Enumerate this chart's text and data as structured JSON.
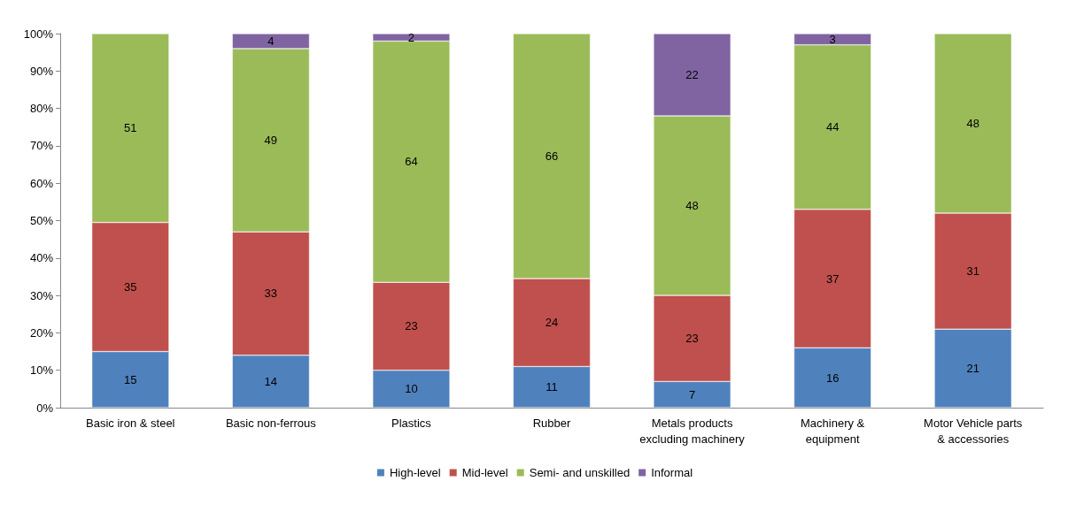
{
  "chart_data": {
    "type": "bar",
    "stacked": true,
    "categories": [
      "Basic iron & steel",
      "Basic non-ferrous",
      "Plastics",
      "Rubber",
      "Metals products\nexcluding machinery",
      "Machinery &\nequipment",
      "Motor Vehicle parts\n& accessories"
    ],
    "series": [
      {
        "name": "High-level",
        "color": "#4f81bd",
        "values": [
          15,
          14,
          10,
          11,
          7,
          16,
          21
        ],
        "value_labels": [
          "15",
          "14",
          "10",
          "11",
          "7",
          "16",
          "21"
        ]
      },
      {
        "name": "Mid-level",
        "color": "#c0504d",
        "values": [
          34.5,
          33,
          23.5,
          23.5,
          23,
          37,
          31
        ],
        "value_labels": [
          "35",
          "33",
          "23",
          "24",
          "23",
          "37",
          "31"
        ]
      },
      {
        "name": "Semi- and unskilled",
        "color": "#9bbb59",
        "values": [
          50.5,
          49,
          64.5,
          65.5,
          48,
          44,
          48
        ],
        "value_labels": [
          "51",
          "49",
          "64",
          "66",
          "48",
          "44",
          "48"
        ]
      },
      {
        "name": "Informal",
        "color": "#8064a2",
        "values": [
          null,
          4,
          2,
          null,
          22,
          3,
          null
        ],
        "value_labels": [
          null,
          "4",
          "2",
          null,
          "22",
          "3",
          null
        ]
      }
    ],
    "ylim": [
      0,
      100
    ],
    "yticks": [
      {
        "value": 0,
        "label": "0%"
      },
      {
        "value": 10,
        "label": "10%"
      },
      {
        "value": 20,
        "label": "20%"
      },
      {
        "value": 30,
        "label": "30%"
      },
      {
        "value": 40,
        "label": "40%"
      },
      {
        "value": 50,
        "label": "50%"
      },
      {
        "value": 60,
        "label": "60%"
      },
      {
        "value": 70,
        "label": "70%"
      },
      {
        "value": 80,
        "label": "80%"
      },
      {
        "value": 90,
        "label": "90%"
      },
      {
        "value": 100,
        "label": "100%"
      }
    ],
    "grid": false,
    "legend": "bottom"
  }
}
